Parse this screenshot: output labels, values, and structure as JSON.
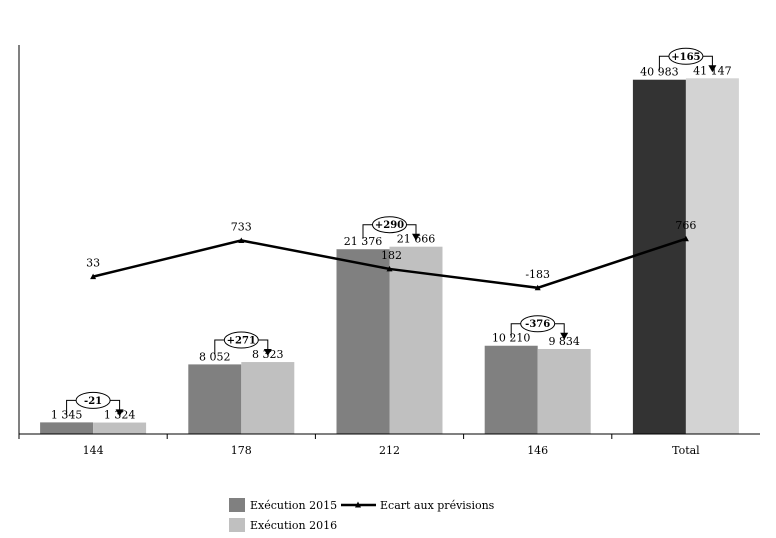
{
  "chart_data": {
    "type": "bar",
    "title": "",
    "xlabel": "",
    "ylabel": "",
    "ylim": [
      0,
      45000
    ],
    "categories": [
      "144",
      "178",
      "212",
      "146",
      "Total"
    ],
    "series": [
      {
        "name": "Exécution 2015",
        "values": [
          1345,
          8052,
          21376,
          10210,
          40983
        ],
        "labels": [
          "1 345",
          "8 052",
          "21 376",
          "10 210",
          "40 983"
        ],
        "color": "#808080",
        "total_color": "#333333"
      },
      {
        "name": "Exécution 2016",
        "values": [
          1324,
          8323,
          21666,
          9834,
          41147
        ],
        "labels": [
          "1 324",
          "8 323",
          "21 666",
          "9 834",
          "41 147"
        ],
        "color": "#c0c0c0",
        "total_color": "#d3d3d3"
      }
    ],
    "line": {
      "name": "Ecart aux prévisions",
      "type": "line",
      "values": [
        33,
        733,
        182,
        -183,
        766
      ],
      "labels": [
        "33",
        "733",
        "182",
        "-183",
        "766"
      ],
      "ylim": [
        -1000,
        3500
      ],
      "color": "#000000"
    },
    "deltas": [
      "-21",
      "+271",
      "+290",
      "-376",
      "+165"
    ],
    "grid": false,
    "legend": "bottom-center"
  }
}
